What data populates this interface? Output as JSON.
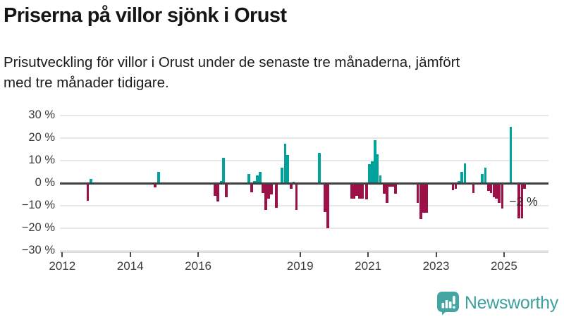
{
  "header": {
    "title": "Priserna på villor sjönk i Orust",
    "subtitle_lines": [
      "Prisutveckling för villor i Orust under de senaste tre månaderna, jämfört",
      "med tre månader tidigare."
    ]
  },
  "chart_data": {
    "type": "bar",
    "title": "Priserna på villor sjönk i Orust",
    "xlabel": "",
    "ylabel": "",
    "unit": "%",
    "ylim": [
      -30,
      30
    ],
    "grid": "horizontal",
    "y_ticks": [
      {
        "v": 30,
        "label": "30 %"
      },
      {
        "v": 20,
        "label": "20 %"
      },
      {
        "v": 10,
        "label": "10 %"
      },
      {
        "v": 0,
        "label": "0 %"
      },
      {
        "v": -10,
        "label": "−10 %"
      },
      {
        "v": -20,
        "label": "−20 %"
      },
      {
        "v": -30,
        "label": "−30 %"
      }
    ],
    "x_ticks": [
      {
        "year": 2012,
        "label": "2012"
      },
      {
        "year": 2014,
        "label": "2014"
      },
      {
        "year": 2016,
        "label": "2016"
      },
      {
        "year": 2019,
        "label": "2019"
      },
      {
        "year": 2021,
        "label": "2021"
      },
      {
        "year": 2023,
        "label": "2023"
      },
      {
        "year": 2025,
        "label": "2025"
      }
    ],
    "annotation": {
      "text": "−2 %",
      "attaches_to": "2025-08"
    },
    "colors": {
      "positive": "#00a39b",
      "negative": "#9e1148"
    },
    "points": [
      {
        "date": "2012-10",
        "yf": 2012.75,
        "v": -7.3
      },
      {
        "date": "2012-11",
        "yf": 2012.84,
        "v": 2.0
      },
      {
        "date": "2014-10",
        "yf": 2014.73,
        "v": -1.5
      },
      {
        "date": "2014-11",
        "yf": 2014.83,
        "v": 5.0
      },
      {
        "date": "2016-06",
        "yf": 2016.49,
        "v": -5.2
      },
      {
        "date": "2016-07",
        "yf": 2016.58,
        "v": -7.6
      },
      {
        "date": "2016-08",
        "yf": 2016.67,
        "v": 0.8
      },
      {
        "date": "2016-09",
        "yf": 2016.75,
        "v": 11.2
      },
      {
        "date": "2016-10",
        "yf": 2016.83,
        "v": -5.7
      },
      {
        "date": "2017-06",
        "yf": 2017.49,
        "v": 4.2
      },
      {
        "date": "2017-07",
        "yf": 2017.57,
        "v": -3.5
      },
      {
        "date": "2017-08",
        "yf": 2017.66,
        "v": 0.8
      },
      {
        "date": "2017-09",
        "yf": 2017.74,
        "v": 3.4
      },
      {
        "date": "2017-10",
        "yf": 2017.82,
        "v": 5.0
      },
      {
        "date": "2017-11",
        "yf": 2017.9,
        "v": -3.9
      },
      {
        "date": "2017-12",
        "yf": 2017.99,
        "v": -11.5
      },
      {
        "date": "2018-01",
        "yf": 2018.07,
        "v": -6.3
      },
      {
        "date": "2018-02",
        "yf": 2018.15,
        "v": -4.4
      },
      {
        "date": "2018-04",
        "yf": 2018.3,
        "v": -10.5
      },
      {
        "date": "2018-06",
        "yf": 2018.47,
        "v": 6.8
      },
      {
        "date": "2018-07",
        "yf": 2018.56,
        "v": 17.4
      },
      {
        "date": "2018-08",
        "yf": 2018.64,
        "v": 12.6
      },
      {
        "date": "2018-09",
        "yf": 2018.73,
        "v": -1.9
      },
      {
        "date": "2018-10",
        "yf": 2018.81,
        "v": 0.7
      },
      {
        "date": "2018-11",
        "yf": 2018.89,
        "v": -11.3
      },
      {
        "date": "2019-07",
        "yf": 2019.56,
        "v": 13.3
      },
      {
        "date": "2019-09",
        "yf": 2019.73,
        "v": -12.4
      },
      {
        "date": "2019-10",
        "yf": 2019.82,
        "v": -19.5
      },
      {
        "date": "2020-07",
        "yf": 2020.51,
        "v": -6.3
      },
      {
        "date": "2020-08",
        "yf": 2020.59,
        "v": -6.3
      },
      {
        "date": "2020-09",
        "yf": 2020.67,
        "v": -5.0
      },
      {
        "date": "2020-10",
        "yf": 2020.75,
        "v": -6.3
      },
      {
        "date": "2020-11",
        "yf": 2020.83,
        "v": -6.3
      },
      {
        "date": "2020-12",
        "yf": 2020.95,
        "v": -6.7
      },
      {
        "date": "2021-01",
        "yf": 2021.04,
        "v": 8.3
      },
      {
        "date": "2021-02",
        "yf": 2021.12,
        "v": 9.8
      },
      {
        "date": "2021-03",
        "yf": 2021.2,
        "v": 19.0
      },
      {
        "date": "2021-04",
        "yf": 2021.28,
        "v": 12.9
      },
      {
        "date": "2021-05",
        "yf": 2021.36,
        "v": 3.3
      },
      {
        "date": "2021-06",
        "yf": 2021.47,
        "v": -4.2
      },
      {
        "date": "2021-07",
        "yf": 2021.56,
        "v": -8.2
      },
      {
        "date": "2021-08",
        "yf": 2021.64,
        "v": -1.0
      },
      {
        "date": "2021-09",
        "yf": 2021.72,
        "v": -1.0
      },
      {
        "date": "2021-10",
        "yf": 2021.81,
        "v": -4.2
      },
      {
        "date": "2022-06",
        "yf": 2022.46,
        "v": -8.2
      },
      {
        "date": "2022-07",
        "yf": 2022.55,
        "v": -15.5
      },
      {
        "date": "2022-08",
        "yf": 2022.64,
        "v": -12.6
      },
      {
        "date": "2022-09",
        "yf": 2022.72,
        "v": -12.6
      },
      {
        "date": "2023-07",
        "yf": 2023.5,
        "v": -2.6
      },
      {
        "date": "2023-08",
        "yf": 2023.58,
        "v": -1.9
      },
      {
        "date": "2023-09",
        "yf": 2023.67,
        "v": 1.0
      },
      {
        "date": "2023-10",
        "yf": 2023.76,
        "v": 4.9
      },
      {
        "date": "2023-11",
        "yf": 2023.85,
        "v": 8.9
      },
      {
        "date": "2024-02",
        "yf": 2024.1,
        "v": -4.0
      },
      {
        "date": "2024-05",
        "yf": 2024.36,
        "v": 4.0
      },
      {
        "date": "2024-06",
        "yf": 2024.45,
        "v": 6.8
      },
      {
        "date": "2024-07",
        "yf": 2024.54,
        "v": -2.9
      },
      {
        "date": "2024-08",
        "yf": 2024.62,
        "v": -4.0
      },
      {
        "date": "2024-09",
        "yf": 2024.7,
        "v": -5.8
      },
      {
        "date": "2024-10",
        "yf": 2024.78,
        "v": -6.3
      },
      {
        "date": "2024-11",
        "yf": 2024.86,
        "v": -8.4
      },
      {
        "date": "2024-12",
        "yf": 2024.95,
        "v": -10.7
      },
      {
        "date": "2025-03",
        "yf": 2025.2,
        "v": 25.0
      },
      {
        "date": "2025-06",
        "yf": 2025.44,
        "v": -15.0
      },
      {
        "date": "2025-07",
        "yf": 2025.53,
        "v": -15.0
      },
      {
        "date": "2025-08",
        "yf": 2025.61,
        "v": -2.0
      }
    ]
  },
  "footer": {
    "brand": "Newsworthy"
  },
  "colors": {
    "positive_bar": "#00a39b",
    "negative_bar": "#9e1148",
    "grid": "#e7e7e7",
    "zero_line": "#3f3f3f",
    "axis_text": "#3c3c3c",
    "brand_teal": "#3da19e"
  }
}
